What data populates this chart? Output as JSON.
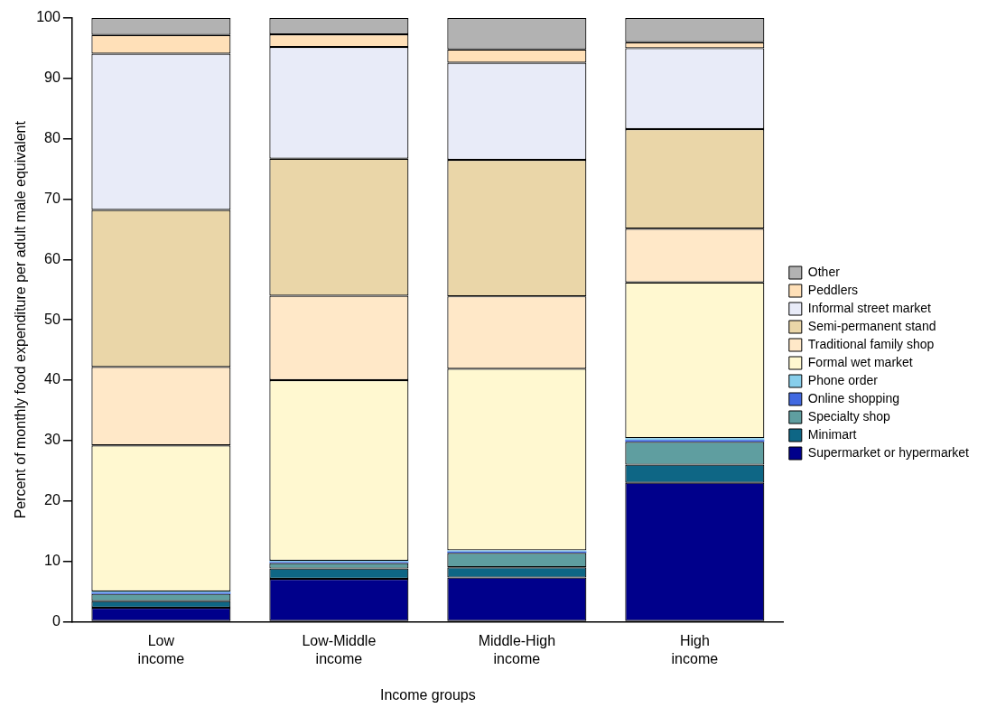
{
  "chart_data": {
    "type": "bar",
    "stacked": true,
    "xlabel": "Income groups",
    "ylabel": "Percent of monthly food expenditure per adult male equivalent",
    "categories": [
      "Low income",
      "Low-Middle income",
      "Middle-High income",
      "High income"
    ],
    "ylim": [
      0,
      100
    ],
    "yticks": [
      0,
      10,
      20,
      30,
      40,
      50,
      60,
      70,
      80,
      90,
      100
    ],
    "grid": false,
    "legend": "right",
    "series": [
      {
        "name": "Supermarket or hypermarket",
        "color": "#00008b",
        "values": [
          2.3,
          7.1,
          7.3,
          23.0
        ]
      },
      {
        "name": "Minimart",
        "color": "#0e6685",
        "values": [
          1.1,
          1.7,
          1.7,
          3.0
        ]
      },
      {
        "name": "Specialty shop",
        "color": "#5f9ea0",
        "values": [
          1.2,
          0.9,
          2.4,
          3.8
        ]
      },
      {
        "name": "Online shopping",
        "color": "#4169e1",
        "values": [
          0.2,
          0.2,
          0.2,
          0.3
        ]
      },
      {
        "name": "Phone order",
        "color": "#87ceeb",
        "values": [
          0.2,
          0.2,
          0.2,
          0.3
        ]
      },
      {
        "name": "Formal wet market",
        "color": "#fff8d0",
        "values": [
          24.2,
          29.9,
          30.1,
          25.8
        ]
      },
      {
        "name": "Traditional family shop",
        "color": "#ffe8c8",
        "values": [
          13.0,
          14.0,
          12.0,
          8.9
        ]
      },
      {
        "name": "Semi-permanent stand",
        "color": "#ead6a8",
        "values": [
          26.0,
          22.7,
          22.6,
          16.5
        ]
      },
      {
        "name": "Informal street market",
        "color": "#e8ebf8",
        "values": [
          25.9,
          18.5,
          16.1,
          13.4
        ]
      },
      {
        "name": "Peddlers",
        "color": "#ffe0b8",
        "values": [
          3.1,
          2.1,
          2.2,
          1.0
        ]
      },
      {
        "name": "Other",
        "color": "#b2b2b2",
        "values": [
          2.8,
          2.7,
          5.2,
          4.0
        ]
      }
    ]
  }
}
